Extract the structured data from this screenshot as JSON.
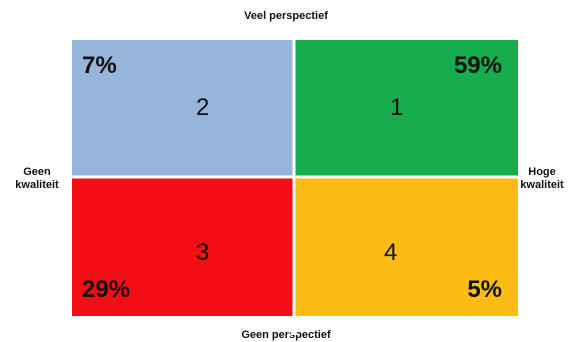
{
  "axes": {
    "top": "Veel perspectief",
    "bottom": "Geen perspectief",
    "left": "Geen kwaliteit",
    "right": "Hoge kwaliteit"
  },
  "quadrants": [
    {
      "id": "q1",
      "number": "1",
      "percentage": "59%",
      "color": "#17ad4f"
    },
    {
      "id": "q2",
      "number": "2",
      "percentage": "7%",
      "color": "#97b5db"
    },
    {
      "id": "q3",
      "number": "3",
      "percentage": "29%",
      "color": "#f20e14"
    },
    {
      "id": "q4",
      "number": "4",
      "percentage": "5%",
      "color": "#fbbd14"
    }
  ]
}
